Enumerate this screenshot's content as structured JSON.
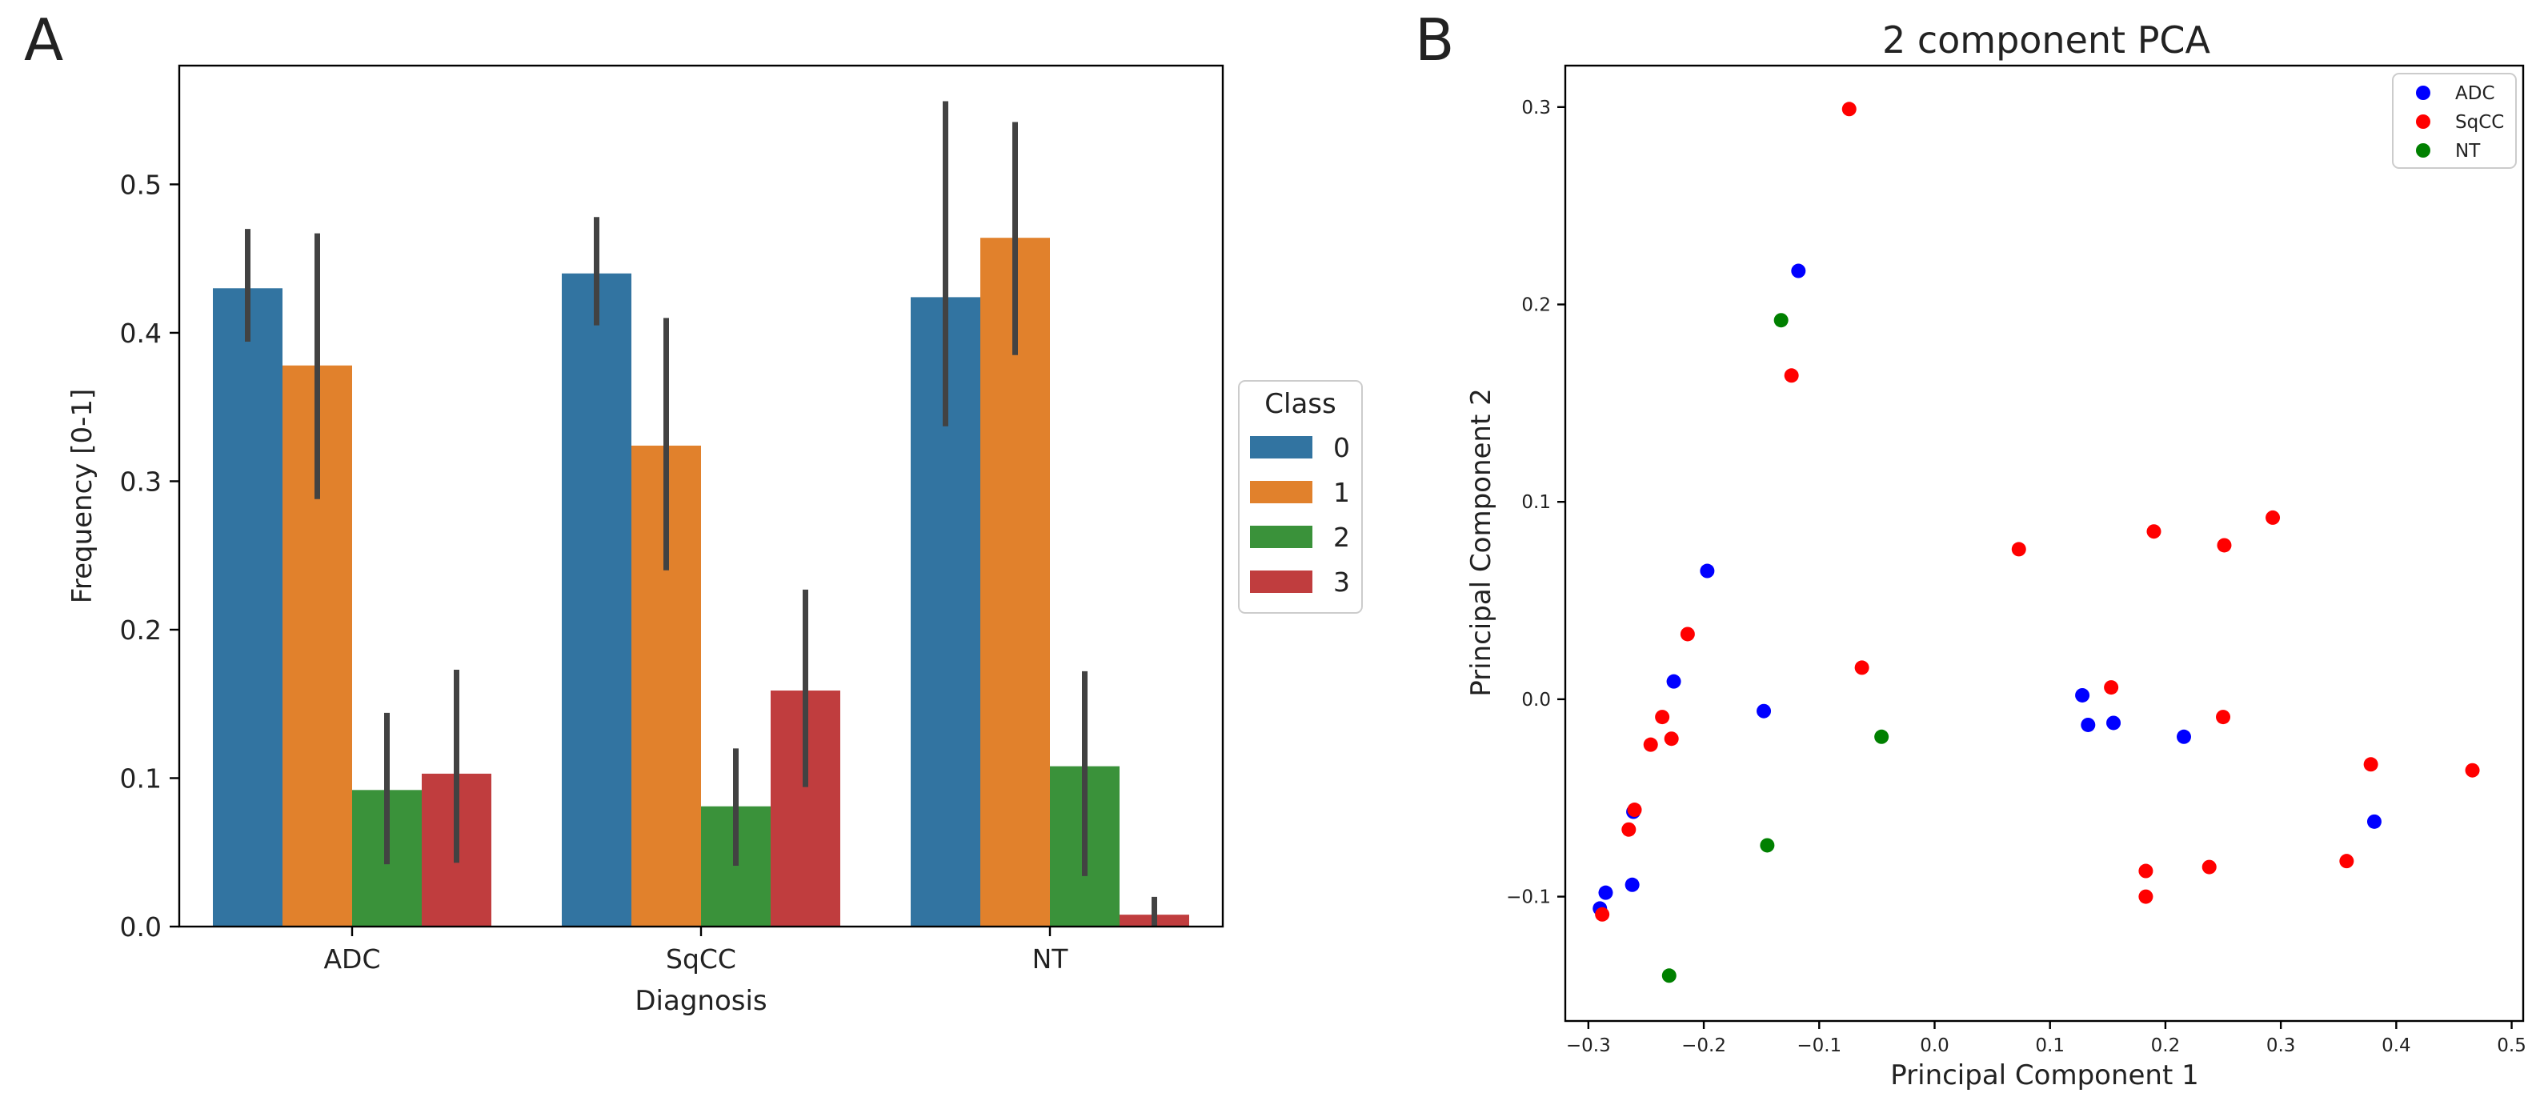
{
  "panels": {
    "a": {
      "letter": "A"
    },
    "b": {
      "letter": "B"
    }
  },
  "colors": {
    "class0": "#3274a1",
    "class1": "#e1812c",
    "class2": "#3a923a",
    "class3": "#c03d3e",
    "adc": "#0000ff",
    "sqcc": "#ff0000",
    "nt": "#008000",
    "errorbar": "#424242"
  },
  "chart_data": [
    {
      "type": "bar",
      "title": "",
      "xlabel": "Diagnosis",
      "ylabel": "Frequency [0-1]",
      "categories": [
        "ADC",
        "SqCC",
        "NT"
      ],
      "ylim": [
        0,
        0.58
      ],
      "yticks": [
        "0.0",
        "0.1",
        "0.2",
        "0.3",
        "0.4",
        "0.5"
      ],
      "ytick_values": [
        0,
        0.1,
        0.2,
        0.3,
        0.4,
        0.5
      ],
      "legend_title": "Class",
      "legend_position": "right-outside",
      "series": [
        {
          "name": "0",
          "values": [
            0.43,
            0.44,
            0.424
          ],
          "err_low": [
            0.394,
            0.405,
            0.337
          ],
          "err_high": [
            0.47,
            0.478,
            0.556
          ]
        },
        {
          "name": "1",
          "values": [
            0.378,
            0.324,
            0.464
          ],
          "err_low": [
            0.288,
            0.24,
            0.385
          ],
          "err_high": [
            0.467,
            0.41,
            0.542
          ]
        },
        {
          "name": "2",
          "values": [
            0.092,
            0.081,
            0.108
          ],
          "err_low": [
            0.042,
            0.041,
            0.034
          ],
          "err_high": [
            0.144,
            0.12,
            0.172
          ]
        },
        {
          "name": "3",
          "values": [
            0.103,
            0.159,
            0.008
          ],
          "err_low": [
            0.043,
            0.094,
            0.0
          ],
          "err_high": [
            0.173,
            0.227,
            0.02
          ]
        }
      ]
    },
    {
      "type": "scatter",
      "title": "2 component PCA",
      "xlabel": "Principal Component 1",
      "ylabel": "Principal Component 2",
      "xlim": [
        -0.32,
        0.51
      ],
      "ylim": [
        -0.163,
        0.321
      ],
      "xticks": [
        "−0.3",
        "−0.2",
        "−0.1",
        "0.0",
        "0.1",
        "0.2",
        "0.3",
        "0.4",
        "0.5"
      ],
      "xtick_values": [
        -0.3,
        -0.2,
        -0.1,
        0.0,
        0.1,
        0.2,
        0.3,
        0.4,
        0.5
      ],
      "yticks": [
        "−0.1",
        "0.0",
        "0.1",
        "0.2",
        "0.3"
      ],
      "ytick_values": [
        -0.1,
        0.0,
        0.1,
        0.2,
        0.3
      ],
      "legend_position": "top-right",
      "series": [
        {
          "name": "ADC",
          "points": [
            [
              -0.118,
              0.217
            ],
            [
              -0.197,
              0.065
            ],
            [
              -0.226,
              0.009
            ],
            [
              -0.148,
              -0.006
            ],
            [
              -0.261,
              -0.057
            ],
            [
              -0.262,
              -0.094
            ],
            [
              -0.285,
              -0.098
            ],
            [
              -0.29,
              -0.106
            ],
            [
              0.128,
              0.002
            ],
            [
              0.133,
              -0.013
            ],
            [
              0.155,
              -0.012
            ],
            [
              0.216,
              -0.019
            ],
            [
              0.381,
              -0.062
            ]
          ]
        },
        {
          "name": "SqCC",
          "points": [
            [
              -0.074,
              0.299
            ],
            [
              -0.124,
              0.164
            ],
            [
              -0.214,
              0.033
            ],
            [
              -0.236,
              -0.009
            ],
            [
              -0.228,
              -0.02
            ],
            [
              -0.246,
              -0.023
            ],
            [
              -0.26,
              -0.056
            ],
            [
              -0.265,
              -0.066
            ],
            [
              -0.288,
              -0.109
            ],
            [
              -0.063,
              0.016
            ],
            [
              0.073,
              0.076
            ],
            [
              0.19,
              0.085
            ],
            [
              0.153,
              0.006
            ],
            [
              0.251,
              0.078
            ],
            [
              0.293,
              0.092
            ],
            [
              0.25,
              -0.009
            ],
            [
              0.378,
              -0.033
            ],
            [
              0.466,
              -0.036
            ],
            [
              0.183,
              -0.087
            ],
            [
              0.183,
              -0.1
            ],
            [
              0.238,
              -0.085
            ],
            [
              0.357,
              -0.082
            ]
          ]
        },
        {
          "name": "NT",
          "points": [
            [
              -0.133,
              0.192
            ],
            [
              -0.046,
              -0.019
            ],
            [
              -0.145,
              -0.074
            ],
            [
              -0.23,
              -0.14
            ]
          ]
        }
      ]
    }
  ]
}
